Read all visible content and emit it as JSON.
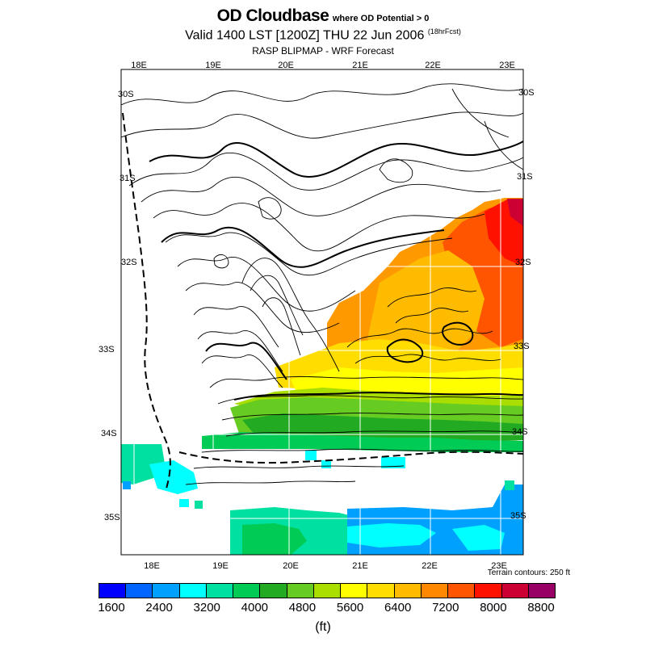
{
  "header": {
    "title": "OD Cloudbase",
    "title_note": "where OD Potential > 0",
    "valid_line": "Valid 1400 LST [1200Z] THU 22 Jun 2006",
    "forecast_note": "(18hrFcst)",
    "source_line": "RASP BLIPMAP - WRF Forecast"
  },
  "map": {
    "lon_labels_top": [
      "18E",
      "19E",
      "20E",
      "21E",
      "22E",
      "23E"
    ],
    "lon_labels_bottom": [
      "18E",
      "19E",
      "20E",
      "21E",
      "22E",
      "23E"
    ],
    "lat_labels_left": [
      "30S",
      "31S",
      "32S",
      "33S",
      "34S",
      "35S"
    ],
    "lat_labels_right": [
      "30S",
      "31S",
      "32S",
      "33S",
      "34S",
      "35S"
    ],
    "terrain_note": "Terrain contours: 250 ft"
  },
  "legend": {
    "colors": [
      "#0000ff",
      "#0066ff",
      "#00a0ff",
      "#00ffff",
      "#00e0a0",
      "#00cc55",
      "#22aa22",
      "#66cc22",
      "#aadd00",
      "#ffff00",
      "#ffdd00",
      "#ffbb00",
      "#ff8800",
      "#ff5500",
      "#ff1100",
      "#cc0033",
      "#990066"
    ],
    "tick_labels": [
      "1600",
      "2400",
      "3200",
      "4000",
      "4800",
      "5600",
      "6400",
      "7200",
      "8000",
      "8800"
    ],
    "units": "(ft)"
  }
}
